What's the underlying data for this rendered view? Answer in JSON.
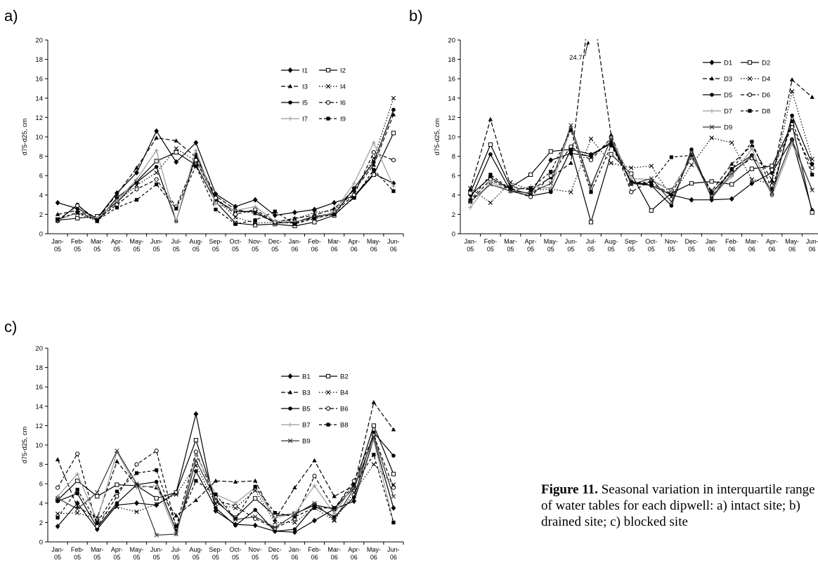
{
  "figure": {
    "caption_label": "Figure 11.",
    "caption_text": " Seasonal variation in interquartile range of water tables for each dipwell: a) intact site; b) drained site; c) blocked site"
  },
  "chart_data": [
    {
      "panel": "a)",
      "type": "line",
      "ylabel": "d75-d25, cm",
      "ylim": [
        0,
        20
      ],
      "yticks": [
        0,
        2,
        4,
        6,
        8,
        10,
        12,
        14,
        16,
        18,
        20
      ],
      "categories": [
        "Jan-05",
        "Feb-05",
        "Mar-05",
        "Apr-05",
        "May-05",
        "Jun-05",
        "Jul-05",
        "Aug-05",
        "Sep-05",
        "Oct-05",
        "Nov-05",
        "Dec-05",
        "Jan-06",
        "Feb-06",
        "Mar-06",
        "Apr-06",
        "May-06",
        "Jun-06"
      ],
      "legend_position": "upper-right",
      "series": [
        {
          "name": "I1",
          "color": "#000000",
          "dash": "",
          "marker": "diamond",
          "values": [
            3.2,
            2.6,
            1.6,
            4.2,
            6.3,
            10.6,
            7.4,
            9.4,
            4.1,
            2.8,
            3.5,
            1.9,
            2.2,
            2.5,
            3.2,
            3.9,
            6.2,
            5.2
          ]
        },
        {
          "name": "I2",
          "color": "#000000",
          "dash": "",
          "marker": "square-open",
          "values": [
            1.4,
            1.6,
            1.8,
            3.2,
            5.4,
            7.5,
            8.4,
            7.1,
            3.3,
            1.1,
            0.9,
            1.0,
            0.8,
            1.2,
            1.9,
            3.8,
            6.1,
            10.4
          ]
        },
        {
          "name": "I3",
          "color": "#000000",
          "dash": "6,3",
          "marker": "triangle",
          "values": [
            2.0,
            2.4,
            1.5,
            4.1,
            6.8,
            9.9,
            9.6,
            7.9,
            3.9,
            2.5,
            2.1,
            1.2,
            1.6,
            1.9,
            2.6,
            4.5,
            7.1,
            12.3
          ]
        },
        {
          "name": "I4",
          "color": "#000000",
          "dash": "1.5,2.5",
          "marker": "x",
          "values": [
            1.5,
            2.1,
            1.3,
            3.3,
            5.0,
            6.3,
            8.8,
            7.5,
            3.6,
            1.7,
            1.1,
            1.2,
            1.5,
            2.2,
            2.4,
            4.2,
            7.8,
            14.0
          ]
        },
        {
          "name": "I5",
          "color": "#000000",
          "dash": "",
          "marker": "circle",
          "values": [
            1.3,
            3.0,
            1.3,
            3.7,
            5.3,
            6.9,
            1.3,
            8.2,
            3.5,
            2.3,
            2.3,
            1.1,
            1.2,
            1.8,
            2.0,
            4.7,
            7.4,
            12.8
          ]
        },
        {
          "name": "I6",
          "color": "#000000",
          "dash": "5,3",
          "marker": "circle-open",
          "values": [
            1.4,
            2.9,
            1.5,
            3.0,
            4.6,
            5.6,
            2.8,
            7.6,
            3.7,
            2.0,
            2.5,
            1.2,
            1.1,
            1.7,
            2.2,
            4.0,
            8.4,
            7.6
          ]
        },
        {
          "name": "I7",
          "color": "#999999",
          "dash": "",
          "marker": "plus",
          "values": [
            1.4,
            2.2,
            1.6,
            3.4,
            5.6,
            8.6,
            1.3,
            8.6,
            3.1,
            2.4,
            2.8,
            1.3,
            1.3,
            1.5,
            2.3,
            5.2,
            9.4,
            4.9
          ]
        },
        {
          "name": "I9",
          "color": "#000000",
          "dash": "4,3",
          "marker": "square",
          "values": [
            1.5,
            2.2,
            1.4,
            2.7,
            3.5,
            5.1,
            2.6,
            7.0,
            2.5,
            1.0,
            1.4,
            2.3,
            1.0,
            1.6,
            2.0,
            3.7,
            6.6,
            4.4
          ]
        }
      ]
    },
    {
      "panel": "b)",
      "type": "line",
      "ylabel": "d75-d25, cm",
      "ylim": [
        0,
        20
      ],
      "yticks": [
        0,
        2,
        4,
        6,
        8,
        10,
        12,
        14,
        16,
        18,
        20
      ],
      "categories": [
        "Jan-05",
        "Feb-05",
        "Mar-05",
        "Apr-05",
        "May-05",
        "Jun-05",
        "Jul-05",
        "Aug-05",
        "Sep-05",
        "Oct-05",
        "Nov-05",
        "Dec-05",
        "Jan-06",
        "Feb-06",
        "Mar-06",
        "Apr-06",
        "May-06",
        "Jun-06"
      ],
      "annotation": {
        "text": "24.7",
        "x_index": 5.55,
        "y": 18.2
      },
      "legend_position": "upper-right",
      "series": [
        {
          "name": "D1",
          "color": "#000000",
          "dash": "",
          "marker": "diamond",
          "values": [
            4.0,
            5.8,
            4.6,
            4.1,
            7.6,
            8.3,
            8.0,
            9.5,
            5.2,
            5.0,
            4.0,
            3.5,
            3.5,
            3.6,
            5.2,
            6.3,
            9.7,
            2.4
          ]
        },
        {
          "name": "D2",
          "color": "#000000",
          "dash": "",
          "marker": "square-open",
          "values": [
            4.2,
            9.2,
            4.8,
            6.1,
            8.5,
            8.7,
            1.2,
            8.2,
            6.2,
            2.4,
            4.2,
            5.2,
            5.4,
            5.1,
            6.7,
            7.0,
            11.3,
            2.2
          ]
        },
        {
          "name": "D3",
          "color": "#000000",
          "dash": "6,3",
          "marker": "triangle",
          "values": [
            4.6,
            11.8,
            4.9,
            4.5,
            5.8,
            7.3,
            24.7,
            10.2,
            5.2,
            5.2,
            4.1,
            7.9,
            4.4,
            7.2,
            9.1,
            5.5,
            15.9,
            14.1
          ]
        },
        {
          "name": "D4",
          "color": "#000000",
          "dash": "1.5,2.5",
          "marker": "x",
          "values": [
            4.7,
            3.2,
            5.3,
            4.5,
            4.6,
            4.3,
            9.8,
            7.3,
            6.8,
            7.0,
            3.8,
            7.1,
            9.9,
            9.4,
            5.6,
            5.2,
            14.7,
            7.7
          ]
        },
        {
          "name": "D5",
          "color": "#000000",
          "dash": "",
          "marker": "circle",
          "values": [
            3.5,
            8.2,
            4.4,
            3.9,
            4.3,
            8.7,
            8.2,
            9.3,
            5.4,
            5.0,
            2.9,
            8.7,
            3.7,
            6.7,
            8.1,
            4.0,
            12.2,
            7.2
          ]
        },
        {
          "name": "D6",
          "color": "#000000",
          "dash": "5,3",
          "marker": "circle-open",
          "values": [
            3.3,
            5.6,
            4.5,
            3.8,
            6.0,
            9.0,
            7.6,
            9.9,
            4.3,
            5.5,
            4.5,
            7.9,
            4.2,
            6.4,
            7.8,
            6.6,
            11.0,
            6.8
          ]
        },
        {
          "name": "D7",
          "color": "#999999",
          "dash": "",
          "marker": "plus",
          "values": [
            2.7,
            5.4,
            4.3,
            4.9,
            4.7,
            10.9,
            4.7,
            9.9,
            5.7,
            5.6,
            4.4,
            8.0,
            4.0,
            5.9,
            8.8,
            3.9,
            9.3,
            4.6
          ]
        },
        {
          "name": "D8",
          "color": "#000000",
          "dash": "4,3",
          "marker": "square",
          "values": [
            3.4,
            6.1,
            4.6,
            4.7,
            6.4,
            10.7,
            4.3,
            9.1,
            5.3,
            5.3,
            7.9,
            8.1,
            4.2,
            6.6,
            9.5,
            4.6,
            11.6,
            6.1
          ]
        },
        {
          "name": "D9",
          "color": "#333333",
          "dash": "",
          "marker": "x",
          "values": [
            3.3,
            5.1,
            4.4,
            4.2,
            5.2,
            11.2,
            4.9,
            9.8,
            5.1,
            5.7,
            3.3,
            8.3,
            3.7,
            6.2,
            8.0,
            4.3,
            9.7,
            4.5
          ]
        }
      ]
    },
    {
      "panel": "c)",
      "type": "line",
      "ylabel": "d75-d25, cm",
      "ylim": [
        0,
        20
      ],
      "yticks": [
        0,
        2,
        4,
        6,
        8,
        10,
        12,
        14,
        16,
        18,
        20
      ],
      "categories": [
        "Jan-05",
        "Feb-05",
        "Mar-05",
        "Apr-05",
        "May-05",
        "Jun-05",
        "Jul-05",
        "Aug-05",
        "Sep-05",
        "Oct-05",
        "Nov-05",
        "Dec-05",
        "Jan-06",
        "Feb-06",
        "Mar-06",
        "Apr-06",
        "May-06",
        "Jun-06"
      ],
      "legend_position": "upper-right",
      "series": [
        {
          "name": "B1",
          "color": "#000000",
          "dash": "",
          "marker": "diamond",
          "values": [
            1.6,
            4.0,
            1.3,
            3.8,
            4.0,
            3.8,
            5.1,
            13.2,
            3.2,
            1.8,
            1.7,
            1.1,
            1.0,
            2.2,
            3.4,
            4.2,
            10.6,
            3.5
          ]
        },
        {
          "name": "B2",
          "color": "#000000",
          "dash": "",
          "marker": "square-open",
          "values": [
            4.3,
            6.3,
            4.7,
            5.9,
            5.8,
            4.5,
            5.1,
            10.5,
            4.2,
            2.5,
            4.5,
            2.7,
            2.9,
            3.8,
            3.4,
            5.6,
            12.0,
            7.0
          ]
        },
        {
          "name": "B3",
          "color": "#000000",
          "dash": "6,3",
          "marker": "triangle",
          "values": [
            8.5,
            3.6,
            2.5,
            8.3,
            5.8,
            5.6,
            2.7,
            4.3,
            6.3,
            6.2,
            6.3,
            2.3,
            5.6,
            8.4,
            4.7,
            5.8,
            14.4,
            11.6
          ]
        },
        {
          "name": "B4",
          "color": "#000000",
          "dash": "1.5,2.5",
          "marker": "x",
          "values": [
            2.9,
            3.0,
            2.4,
            3.6,
            3.1,
            3.9,
            4.9,
            7.9,
            3.9,
            3.5,
            5.3,
            2.0,
            2.0,
            3.5,
            2.2,
            5.1,
            8.0,
            5.9
          ]
        },
        {
          "name": "B5",
          "color": "#000000",
          "dash": "",
          "marker": "circle",
          "values": [
            4.2,
            5.0,
            1.5,
            4.0,
            5.9,
            6.2,
            1.2,
            7.3,
            3.5,
            1.7,
            3.3,
            1.1,
            1.3,
            3.7,
            2.6,
            4.6,
            11.3,
            8.9
          ]
        },
        {
          "name": "B6",
          "color": "#000000",
          "dash": "5,3",
          "marker": "circle-open",
          "values": [
            5.6,
            9.1,
            1.6,
            4.7,
            8.0,
            9.4,
            1.5,
            9.3,
            4.3,
            3.7,
            2.4,
            1.4,
            2.4,
            6.8,
            3.4,
            6.3,
            11.0,
            5.6
          ]
        },
        {
          "name": "B7",
          "color": "#999999",
          "dash": "",
          "marker": "plus",
          "values": [
            4.7,
            7.0,
            2.2,
            9.3,
            5.6,
            5.8,
            0.8,
            9.0,
            4.9,
            4.0,
            5.6,
            2.5,
            2.9,
            5.8,
            2.9,
            5.9,
            10.5,
            2.0
          ]
        },
        {
          "name": "B8",
          "color": "#000000",
          "dash": "4,3",
          "marker": "square",
          "values": [
            2.5,
            5.4,
            2.0,
            5.2,
            7.1,
            7.4,
            1.6,
            6.3,
            4.9,
            2.4,
            5.7,
            3.0,
            2.6,
            3.5,
            3.5,
            5.9,
            9.0,
            2.0
          ]
        },
        {
          "name": "B9",
          "color": "#333333",
          "dash": "",
          "marker": "x",
          "values": [
            4.5,
            3.4,
            5.1,
            9.4,
            6.0,
            0.7,
            0.8,
            8.4,
            4.4,
            2.3,
            2.6,
            1.5,
            2.8,
            4.0,
            2.3,
            5.5,
            10.9,
            4.7
          ]
        }
      ]
    }
  ]
}
